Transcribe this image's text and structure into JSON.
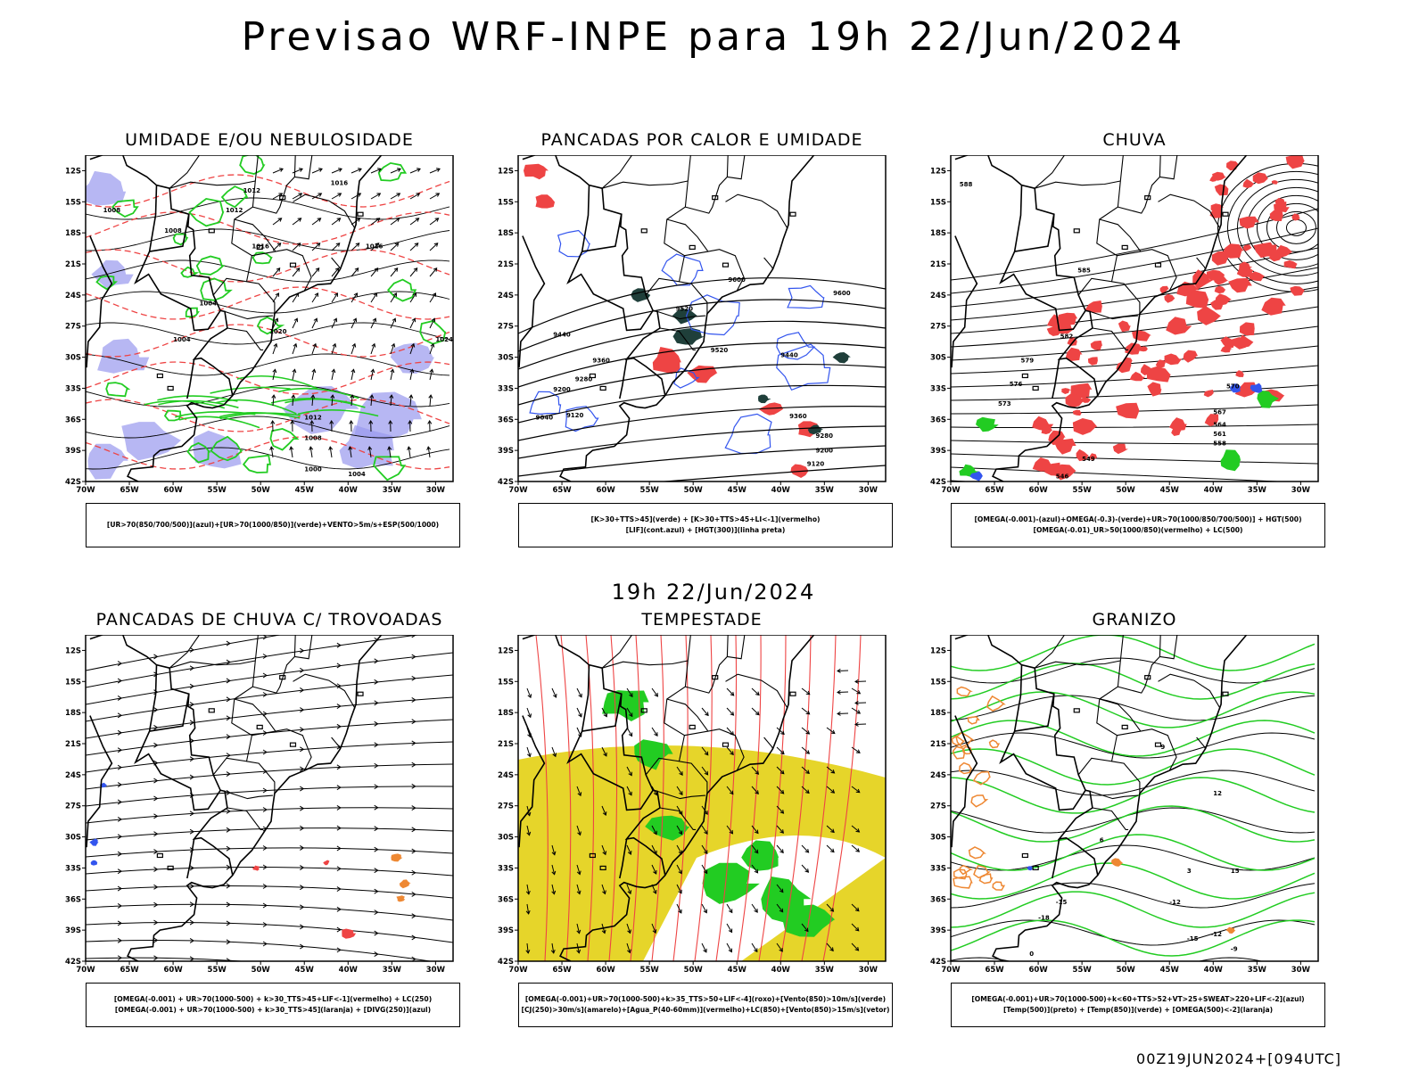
{
  "title": "Previsao WRF-INPE  para 19h 22/Jun/2024",
  "mid_title": "19h 22/Jun/2024",
  "footer": "00Z19JUN2024+[094UTC]",
  "lat_labels": [
    "12S",
    "15S",
    "18S",
    "21S",
    "24S",
    "27S",
    "30S",
    "33S",
    "36S",
    "39S",
    "42S"
  ],
  "lon_labels": [
    "70W",
    "65W",
    "60W",
    "55W",
    "50W",
    "45W",
    "40W",
    "35W",
    "30W"
  ],
  "colors": {
    "green": "#22cc22",
    "red": "#ee4444",
    "blue": "#3355ee",
    "lilac": "#9999ee",
    "yellow": "#e6d52a",
    "darkgreen": "#1f3f3a",
    "orange": "#ee8833",
    "black": "#000000"
  },
  "panels": [
    {
      "id": "umidade",
      "title": "UMIDADE E/OU NEBULOSIDADE",
      "legend": [
        "[UR>70(850/700/500)](azul)+[UR>70(1000/850)](verde)+VENTO>5m/s+ESP(500/1000)"
      ],
      "contour_labels": [
        "1016",
        "1012",
        "1012",
        "1008",
        "1008",
        "1004",
        "1004",
        "1016",
        "1020",
        "1012",
        "1008",
        "1004",
        "1000",
        "1024",
        "1016"
      ]
    },
    {
      "id": "pancadas-calor",
      "title": "PANCADAS POR CALOR E UMIDADE",
      "legend": [
        "[K>30+TTS>45](verde) + [K>30+TTS>45+LI<-1](vermelho)",
        "[LIF](cont.azul) + [HGT(300)](linha preta)"
      ],
      "contour_labels": [
        "9600",
        "9520",
        "9440",
        "9360",
        "9280",
        "9200",
        "9120",
        "9040",
        "9600",
        "9520",
        "9440",
        "9360",
        "9280",
        "9200",
        "9120"
      ]
    },
    {
      "id": "chuva",
      "title": "CHUVA",
      "legend": [
        "[OMEGA(-0.001)-(azul)+OMEGA(-0.3)-(verde)+UR>70(1000/850/700/500)] + HGT(500)",
        "[OMEGA(-0.01)_UR>50(1000/850)(vermelho) + LC(500)"
      ],
      "contour_labels": [
        "588",
        "585",
        "582",
        "579",
        "576",
        "573",
        "570",
        "567",
        "564",
        "561",
        "558",
        "546",
        "549"
      ]
    },
    {
      "id": "pancadas-trovoadas",
      "title": "PANCADAS DE CHUVA C/ TROVOADAS",
      "legend": [
        "[OMEGA(-0.001) + UR>70(1000-500) + k>30_TTS>45+LIF<-1](vermelho) + LC(250)",
        "[OMEGA(-0.001) + UR>70(1000-500) + k>30_TTS>45](laranja) + [DIVG(250)](azul)"
      ],
      "contour_labels": []
    },
    {
      "id": "tempestade",
      "title": "TEMPESTADE",
      "legend": [
        "[OMEGA(-0.001)+UR>70(1000-500)+k>35_TTS>50+LIF<-4](roxo)+[Vento(850)>10m/s](verde)",
        "[CJ(250)>30m/s](amarelo)+[Agua_P(40-60mm)](vermelho)+LC(850)+[Vento(850)>15m/s](vetor)"
      ],
      "contour_labels": []
    },
    {
      "id": "granizo",
      "title": "GRANIZO",
      "legend": [
        "[OMEGA(-0.001)+UR>70(1000-500)+k<60+TTS>52+VT>25+SWEAT>220+LIF<-2](azul)",
        "[Temp(500)](preto) + [Temp(850)](verde) + [OMEGA(500)<-2](laranja)"
      ],
      "contour_labels": [
        "-12",
        "-15",
        "-18",
        "-9",
        "0",
        "3",
        "6",
        "9",
        "12",
        "15",
        "-12",
        "-15"
      ]
    }
  ]
}
